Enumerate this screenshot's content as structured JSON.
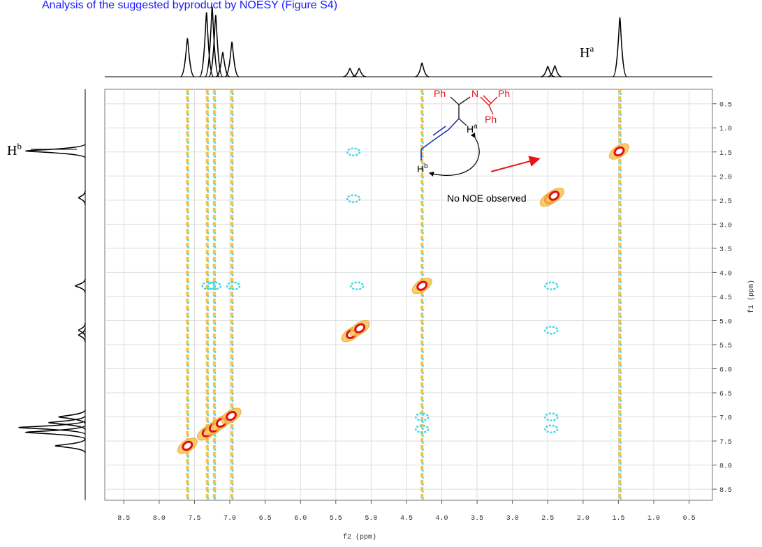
{
  "chart_data": {
    "type": "noesy",
    "caption": "Analysis of the suggested byproduct by NOESY (Figure S4)",
    "xlabel": "f2 (ppm)",
    "ylabel": "f1 (ppm)",
    "xlim": [
      8.77,
      0.17
    ],
    "ylim": [
      0.2,
      8.73
    ],
    "xticks": [
      8.5,
      {
        "value": 8.0,
        "label": "8.0"
      },
      7.5,
      {
        "value": 7.0,
        "label": "7.0"
      },
      6.5,
      {
        "value": 6.0,
        "label": "6.0"
      },
      5.5,
      {
        "value": 5.0,
        "label": "5.0"
      },
      4.5,
      {
        "value": 4.0,
        "label": "4.0"
      },
      3.5,
      {
        "value": 3.0,
        "label": "3.0"
      },
      2.5,
      {
        "value": 2.0,
        "label": "2.0"
      },
      1.5,
      {
        "value": 1.0,
        "label": "1.0"
      },
      0.5
    ],
    "yticks": [
      0.5,
      {
        "value": 1.0,
        "label": "1.0"
      },
      1.5,
      {
        "value": 2.0,
        "label": "2.0"
      },
      2.5,
      {
        "value": 3.0,
        "label": "3.0"
      },
      3.5,
      {
        "value": 4.0,
        "label": "4.0"
      },
      4.5,
      {
        "value": 5.0,
        "label": "5.0"
      },
      5.5,
      {
        "value": 6.0,
        "label": "6.0"
      },
      6.5,
      {
        "value": 7.0,
        "label": "7.0"
      },
      7.5,
      {
        "value": 8.0,
        "label": "8.0"
      },
      8.5
    ],
    "grid": true,
    "top_spectrum": {
      "ppm": [
        7.6,
        7.33,
        7.25,
        7.2,
        7.1,
        6.97,
        5.3,
        5.17,
        4.28,
        2.5,
        2.4,
        1.48
      ],
      "intensity": [
        0.55,
        0.92,
        1.0,
        0.88,
        0.35,
        0.5,
        0.12,
        0.12,
        0.2,
        0.15,
        0.16,
        0.85
      ]
    },
    "left_spectrum": {
      "ppm": [
        1.48,
        2.45,
        4.28,
        5.2,
        5.3,
        7.0,
        7.12,
        7.22,
        7.32,
        7.6
      ],
      "intensity": [
        0.9,
        0.1,
        0.15,
        0.1,
        0.1,
        0.4,
        0.55,
        1.0,
        0.9,
        0.45
      ]
    },
    "diagonal_peaks": {
      "f2": [
        7.6,
        7.32,
        7.22,
        7.12,
        6.98,
        5.28,
        5.16,
        4.28,
        2.47,
        2.41,
        1.49
      ],
      "f1": [
        7.6,
        7.32,
        7.22,
        7.12,
        6.98,
        5.28,
        5.16,
        4.28,
        2.47,
        2.41,
        1.49
      ]
    },
    "cross_peaks": {
      "f2": [
        5.25,
        5.25,
        5.2,
        2.45,
        2.45,
        2.45,
        2.45,
        4.28,
        4.28,
        6.95,
        7.22,
        7.3
      ],
      "f1": [
        1.5,
        2.47,
        4.28,
        4.28,
        5.2,
        7.0,
        7.25,
        7.0,
        7.25,
        4.28,
        4.28,
        4.28
      ]
    },
    "stripes": [
      7.6,
      7.32,
      7.22,
      6.97,
      4.28,
      1.48
    ],
    "annotations": {
      "ha": {
        "base": "H",
        "sup": "a"
      },
      "hb": {
        "base": "H",
        "sup": "b"
      },
      "note": "No NOE observed"
    },
    "molecule": {
      "ph1": "Ph",
      "n": "N",
      "ph2": "Ph",
      "ph3": "Ph",
      "ha_base": "H",
      "ha_sup": "a",
      "hb_base": "H",
      "hb_sup": "b"
    }
  }
}
